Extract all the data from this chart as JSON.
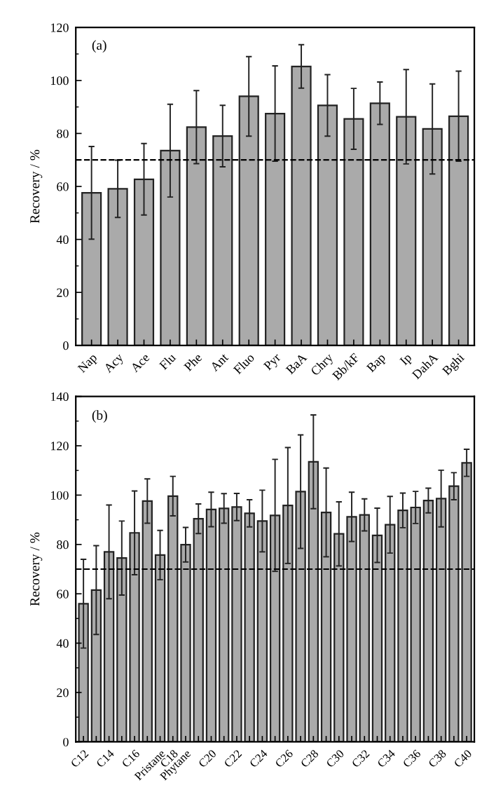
{
  "chart_data": [
    {
      "type": "bar",
      "ylabel": "Recovery / %",
      "annotations": [
        "(a)"
      ],
      "categories": [
        "Nap",
        "Acy",
        "Ace",
        "Flu",
        "Phe",
        "Ant",
        "Fluo",
        "Pyr",
        "BaA",
        "Chry",
        "Bb/kF",
        "Bap",
        "Ip",
        "DahA",
        "Bghi"
      ],
      "series": [
        {
          "color": "#aaaaaa",
          "values": [
            57.6,
            59.1,
            62.7,
            73.5,
            82.4,
            79,
            94,
            87.5,
            105.3,
            90.6,
            85.5,
            91.4,
            86.3,
            81.7,
            86.5
          ],
          "errors": [
            17.5,
            10.8,
            13.5,
            17.5,
            13.8,
            11.6,
            15,
            18,
            8.2,
            11.6,
            11.5,
            8,
            17.8,
            17,
            17
          ]
        }
      ],
      "ylim": [
        0,
        120
      ],
      "yticks": [
        0,
        20,
        40,
        60,
        80,
        100,
        120
      ],
      "ref_lines": [
        {
          "axis": "y",
          "value": 70,
          "line_style": "dashed",
          "color": "#000000"
        }
      ],
      "grid": false,
      "legend": false
    },
    {
      "type": "bar",
      "ylabel": "Recovery / %",
      "annotations": [
        "(b)"
      ],
      "categories": [
        "C12",
        null,
        "C14",
        null,
        "C16",
        null,
        "Pristane",
        "C18",
        "Phytane",
        null,
        "C20",
        null,
        "C22",
        null,
        "C24",
        null,
        "C26",
        null,
        "C28",
        null,
        "C30",
        null,
        "C32",
        null,
        "C34",
        null,
        "C36",
        null,
        "C38",
        null,
        "C40"
      ],
      "series": [
        {
          "color": "#aaaaaa",
          "values": [
            56,
            61.5,
            77,
            74.5,
            84.7,
            97.6,
            75.7,
            99.6,
            79.9,
            90.4,
            94.2,
            94.6,
            95.2,
            92.6,
            89.5,
            91.8,
            95.8,
            101.4,
            113.5,
            93,
            84.3,
            91.2,
            92,
            83.7,
            88,
            93.8,
            95,
            97.8,
            98.6,
            103.6,
            113.1
          ],
          "errors": [
            18,
            18,
            19,
            15,
            17,
            9,
            10,
            8,
            7,
            6,
            7,
            6,
            5.5,
            5.5,
            12.5,
            22.7,
            23.5,
            23,
            19,
            18,
            13,
            10,
            6.5,
            11,
            11.5,
            7,
            6.5,
            5,
            11.5,
            5.5,
            5.5
          ]
        }
      ],
      "ylim": [
        0,
        140
      ],
      "yticks": [
        0,
        20,
        40,
        60,
        80,
        100,
        120,
        140
      ],
      "ref_lines": [
        {
          "axis": "y",
          "value": 70,
          "line_style": "dashed",
          "color": "#000000"
        }
      ],
      "grid": false,
      "legend": false
    }
  ]
}
